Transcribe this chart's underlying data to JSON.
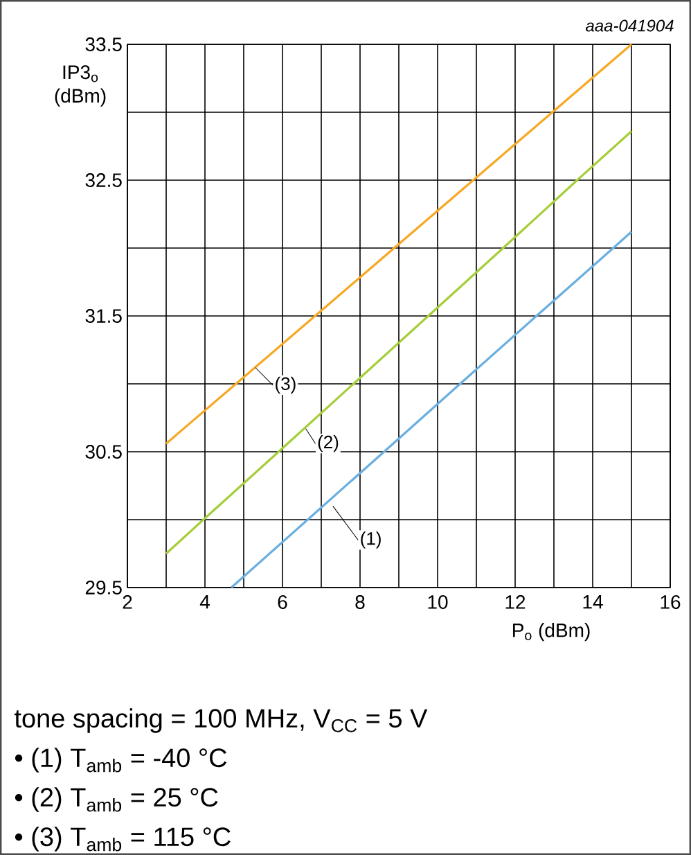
{
  "chart_data": {
    "type": "line",
    "xlabel": "P$_{o}$ (dBm)",
    "ylabel": "IP3$_{o}$ (dBm)",
    "annotations": [
      "aaa-041904",
      "tone spacing = 100 MHz, V$_{CC}$ = 5 V",
      "• (1) T$_{amb}$ = -40 °C",
      "• (2) T$_{amb}$ = 25 °C",
      "• (3) T$_{amb}$ = 115 °C"
    ],
    "series": [
      {
        "name": "(1)",
        "color": "#6aafe0",
        "x": [
          4.68,
          6.65,
          8.62,
          10.58,
          12.55,
          14.53,
          15
        ],
        "values": [
          29.5,
          30,
          30.5,
          31,
          31.5,
          32,
          32.12
        ]
      },
      {
        "name": "(2)",
        "color": "#a6ce39",
        "x": [
          3,
          3.96,
          5.9,
          7.83,
          9.76,
          11.69,
          13.6,
          15
        ],
        "values": [
          29.75,
          30,
          30.5,
          31,
          31.5,
          32,
          32.5,
          32.86
        ]
      },
      {
        "name": "(3)",
        "color": "#f7a823",
        "x": [
          3,
          4.8,
          6.84,
          8.88,
          10.92,
          12.96,
          15
        ],
        "values": [
          30.56,
          31,
          31.5,
          32,
          32.5,
          33,
          33.5
        ]
      }
    ],
    "xlim": [
      2,
      16
    ],
    "ylim": [
      29.5,
      33.5
    ],
    "xticks": [
      2,
      {
        "value": 3,
        "label": null
      },
      4,
      {
        "value": 5,
        "label": null
      },
      6,
      {
        "value": 7,
        "label": null
      },
      8,
      {
        "value": 9,
        "label": null
      },
      10,
      {
        "value": 11,
        "label": null
      },
      12,
      {
        "value": 13,
        "label": null
      },
      14,
      {
        "value": 15,
        "label": null
      },
      16
    ],
    "yticks": [
      29.5,
      {
        "value": 30,
        "label": null
      },
      30.5,
      {
        "value": 31,
        "label": null
      },
      31.5,
      {
        "value": 32,
        "label": null
      },
      32.5,
      {
        "value": 33,
        "label": null
      },
      33.5
    ],
    "grid": true,
    "legend": false,
    "marker": "none",
    "line_style": "solid"
  }
}
